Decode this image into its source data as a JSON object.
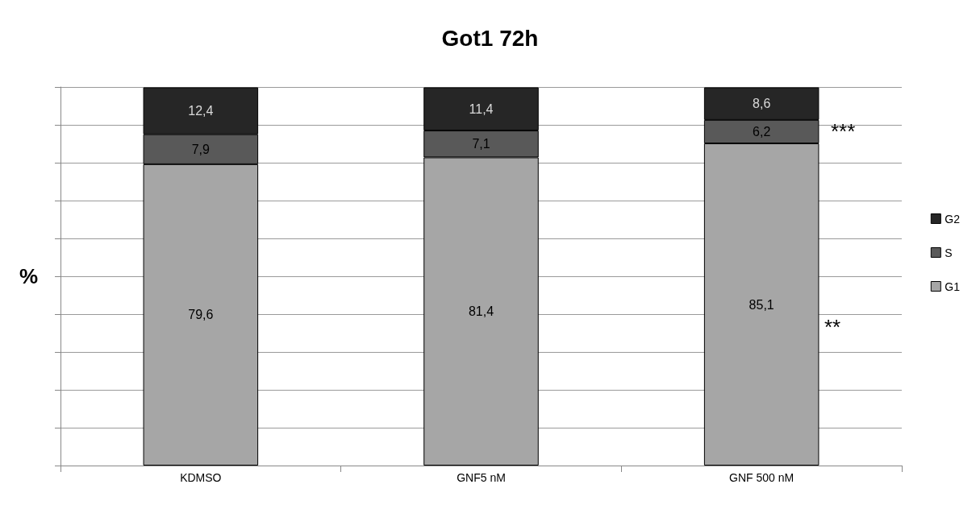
{
  "chart_data": {
    "type": "bar",
    "title": "Got1 72h",
    "ylabel": "%",
    "categories": [
      "KDMSO",
      "GNF5 nM",
      "GNF 500 nM"
    ],
    "stacked": true,
    "series": [
      {
        "name": "G1",
        "color": "#a6a6a6",
        "values": [
          79.6,
          81.4,
          85.1
        ],
        "value_labels": [
          "79,6",
          "81,4",
          "85,1"
        ]
      },
      {
        "name": "S",
        "color": "#595959",
        "values": [
          7.9,
          7.1,
          6.2
        ],
        "value_labels": [
          "7,9",
          "7,1",
          "6,2"
        ]
      },
      {
        "name": "G2",
        "color": "#262626",
        "values": [
          12.4,
          11.4,
          8.6
        ],
        "value_labels": [
          "12,4",
          "11,4",
          "8,6"
        ]
      }
    ],
    "ylim": [
      0,
      100
    ],
    "yticks": [
      {
        "value": 0,
        "label": null
      },
      {
        "value": 10,
        "label": null
      },
      {
        "value": 20,
        "label": null
      },
      {
        "value": 30,
        "label": null
      },
      {
        "value": 40,
        "label": null
      },
      {
        "value": 50,
        "label": null
      },
      {
        "value": 60,
        "label": null
      },
      {
        "value": 70,
        "label": null
      },
      {
        "value": 80,
        "label": null
      },
      {
        "value": 90,
        "label": null
      },
      {
        "value": 100,
        "label": null
      }
    ],
    "tick_labels": "x",
    "grid": "y",
    "legend": "right",
    "annotations": [
      "***",
      "**"
    ]
  }
}
